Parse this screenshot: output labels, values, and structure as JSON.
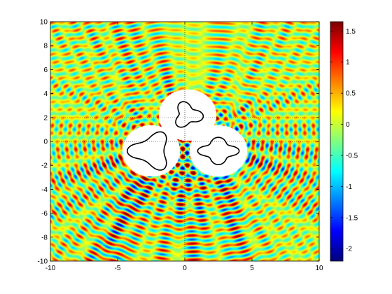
{
  "chart_data": {
    "type": "heatmap",
    "title": "",
    "xlabel": "",
    "ylabel": "",
    "xlim": [
      -10,
      10
    ],
    "ylim": [
      -10,
      10
    ],
    "x_ticks": [
      -10,
      -5,
      0,
      5,
      10
    ],
    "y_ticks": [
      -10,
      -8,
      -6,
      -4,
      -2,
      0,
      2,
      4,
      6,
      8,
      10
    ],
    "grid": "dotted lines at x=0 and y=0 inside the scatterer discs",
    "colormap": "jet",
    "color_range": [
      -2.2,
      1.65
    ],
    "colorbar_ticks": [
      1.5,
      1,
      0.5,
      0,
      -0.5,
      -1,
      -1.5,
      -2
    ],
    "colorbar_placement": "right",
    "incident_wave": "plane wave travelling in the -y direction",
    "approx_wavenumber": 9.5,
    "scatterers": [
      {
        "shape": "curved-triangle",
        "center": [
          -2.5,
          -0.8
        ],
        "size": 1.3,
        "excluded_disc_radius": 2.15
      },
      {
        "shape": "trefoil",
        "center": [
          0.2,
          2.2
        ],
        "size": 1.0,
        "excluded_disc_radius": 2.15
      },
      {
        "shape": "four-lobed",
        "center": [
          2.5,
          -0.8
        ],
        "size": 1.1,
        "excluded_disc_radius": 2.15
      }
    ]
  },
  "colors": {
    "background": "#ffffff",
    "axis": "#000000",
    "scatterer_outline": "#000000",
    "excluded_region": "#ffffff"
  }
}
